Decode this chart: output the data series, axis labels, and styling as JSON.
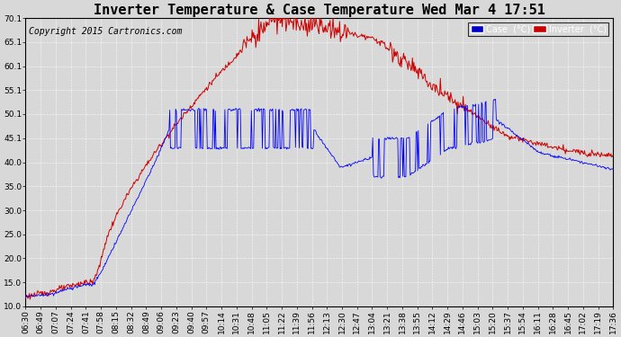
{
  "title": "Inverter Temperature & Case Temperature Wed Mar 4 17:51",
  "copyright": "Copyright 2015 Cartronics.com",
  "background_color": "#d8d8d8",
  "ylim": [
    10.0,
    70.1
  ],
  "yticks": [
    10.0,
    15.0,
    20.0,
    25.0,
    30.0,
    35.0,
    40.0,
    45.1,
    50.1,
    55.1,
    60.1,
    65.1,
    70.1
  ],
  "ytick_labels": [
    "10.0",
    "15.0",
    "20.0",
    "25.0",
    "30.0",
    "35.0",
    "40.0",
    "45.1",
    "50.1",
    "55.1",
    "60.1",
    "65.1",
    "70.1"
  ],
  "xtick_labels": [
    "06:30",
    "06:49",
    "07:07",
    "07:24",
    "07:41",
    "07:58",
    "08:15",
    "08:32",
    "08:49",
    "09:06",
    "09:23",
    "09:40",
    "09:57",
    "10:14",
    "10:31",
    "10:48",
    "11:05",
    "11:22",
    "11:39",
    "11:56",
    "12:13",
    "12:30",
    "12:47",
    "13:04",
    "13:21",
    "13:38",
    "13:55",
    "14:12",
    "14:29",
    "14:46",
    "15:03",
    "15:20",
    "15:37",
    "15:54",
    "16:11",
    "16:28",
    "16:45",
    "17:02",
    "17:19",
    "17:36"
  ],
  "legend_case_label": "Case  (°C)",
  "legend_inverter_label": "Inverter  (°C)",
  "case_color": "#0000ff",
  "inverter_color": "#cc0000",
  "legend_case_bg": "#0000cc",
  "legend_inverter_bg": "#cc0000",
  "title_fontsize": 11,
  "tick_fontsize": 6.5,
  "copyright_fontsize": 7
}
